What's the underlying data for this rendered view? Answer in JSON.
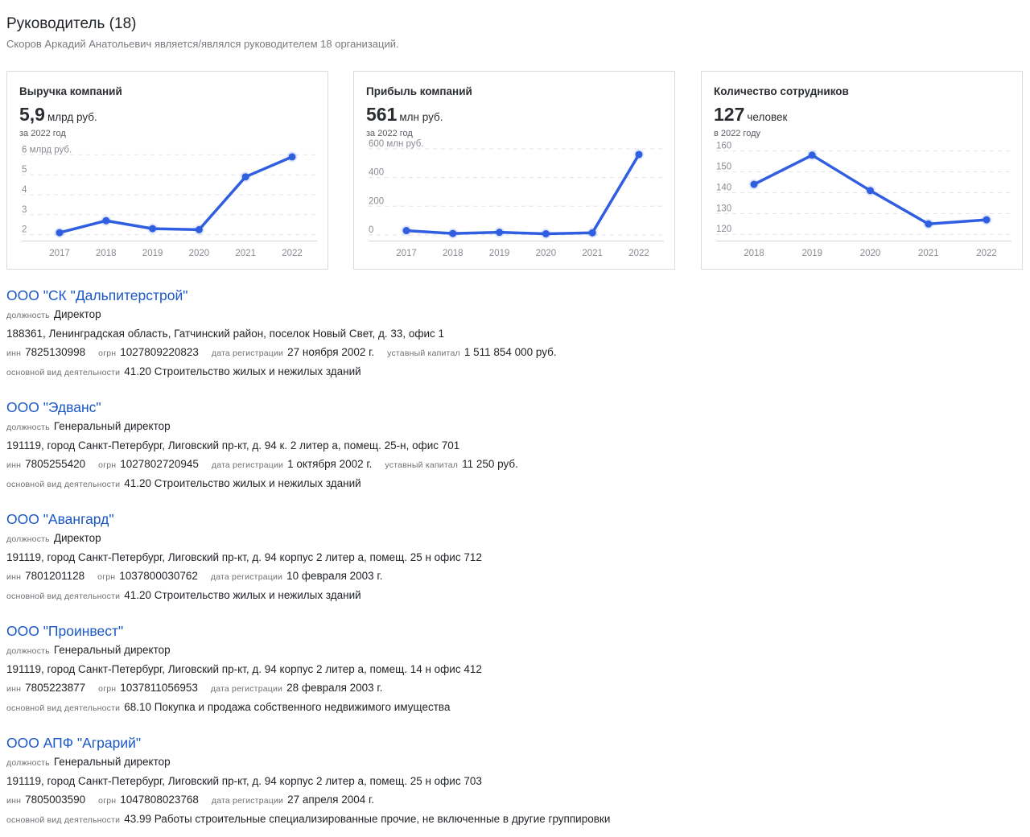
{
  "header": {
    "title": "Руководитель (18)",
    "subtitle": "Скоров Аркадий Анатольевич является/являлся руководителем 18 организаций."
  },
  "cards": [
    {
      "title": "Выручка компаний",
      "value": "5,9",
      "unit": "млрд руб.",
      "period": "за 2022 год",
      "chart_data": {
        "type": "line",
        "x": [
          "2017",
          "2018",
          "2019",
          "2020",
          "2021",
          "2022"
        ],
        "values": [
          2.1,
          2.7,
          2.3,
          2.25,
          4.9,
          5.9
        ],
        "y_ticks": [
          "6 млрд руб.",
          "5",
          "4",
          "3",
          "2"
        ],
        "y_tick_values": [
          6,
          5,
          4,
          3,
          2
        ],
        "ylim": [
          1.7,
          6.3
        ],
        "color": "#2f5fe0"
      }
    },
    {
      "title": "Прибыль компаний",
      "value": "561",
      "unit": "млн руб.",
      "period": "за 2022 год",
      "chart_data": {
        "type": "line",
        "x": [
          "2017",
          "2018",
          "2019",
          "2020",
          "2021",
          "2022"
        ],
        "values": [
          30,
          10,
          18,
          8,
          15,
          561
        ],
        "y_ticks": [
          "600 млн руб.",
          "400",
          "200",
          "0"
        ],
        "y_tick_values": [
          600,
          400,
          200,
          0
        ],
        "ylim": [
          -40,
          600
        ],
        "color": "#2f5fe0"
      }
    },
    {
      "title": "Количество сотрудников",
      "value": "127",
      "unit": "человек",
      "period": "в 2022 году",
      "chart_data": {
        "type": "line",
        "x": [
          "2018",
          "2019",
          "2020",
          "2021",
          "2022"
        ],
        "values": [
          144,
          158,
          141,
          125,
          127
        ],
        "y_ticks": [
          "160",
          "150",
          "140",
          "130",
          "120"
        ],
        "y_tick_values": [
          160,
          150,
          140,
          130,
          120
        ],
        "ylim": [
          117,
          161
        ],
        "color": "#2f5fe0"
      }
    }
  ],
  "labels": {
    "position": "должность",
    "inn": "инн",
    "ogrn": "огрн",
    "reg_date": "дата регистрации",
    "capital": "уставный капитал",
    "activity": "основной вид деятельности"
  },
  "organizations": [
    {
      "name": "ООО \"СК \"Дальпитерстрой\"",
      "position": "Директор",
      "address": "188361, Ленинградская область, Гатчинский район, поселок Новый Свет, д. 33, офис 1",
      "inn": "7825130998",
      "ogrn": "1027809220823",
      "reg_date": "27 ноября 2002 г.",
      "capital": "1 511 854 000 руб.",
      "activity": "41.20 Строительство жилых и нежилых зданий"
    },
    {
      "name": "ООО \"Эдванс\"",
      "position": "Генеральный директор",
      "address": "191119, город Санкт-Петербург, Лиговский пр-кт, д. 94 к. 2 литер а, помещ. 25-н, офис 701",
      "inn": "7805255420",
      "ogrn": "1027802720945",
      "reg_date": "1 октября 2002 г.",
      "capital": "11 250 руб.",
      "activity": "41.20 Строительство жилых и нежилых зданий"
    },
    {
      "name": "ООО \"Авангард\"",
      "position": "Директор",
      "address": "191119, город Санкт-Петербург, Лиговский пр-кт, д. 94 корпус 2 литер а, помещ. 25 н офис 712",
      "inn": "7801201128",
      "ogrn": "1037800030762",
      "reg_date": "10 февраля 2003 г.",
      "activity": "41.20 Строительство жилых и нежилых зданий"
    },
    {
      "name": "ООО \"Проинвест\"",
      "position": "Генеральный директор",
      "address": "191119, город Санкт-Петербург, Лиговский пр-кт, д. 94 корпус 2 литер а, помещ. 14 н офис 412",
      "inn": "7805223877",
      "ogrn": "1037811056953",
      "reg_date": "28 февраля 2003 г.",
      "activity": "68.10 Покупка и продажа собственного недвижимого имущества"
    },
    {
      "name": "ООО АПФ \"Аграрий\"",
      "position": "Генеральный директор",
      "address": "191119, город Санкт-Петербург, Лиговский пр-кт, д. 94 корпус 2 литер а, помещ. 25 н офис 703",
      "inn": "7805003590",
      "ogrn": "1047808023768",
      "reg_date": "27 апреля 2004 г.",
      "activity": "43.99 Работы строительные специализированные прочие, не включенные в другие группировки"
    }
  ]
}
